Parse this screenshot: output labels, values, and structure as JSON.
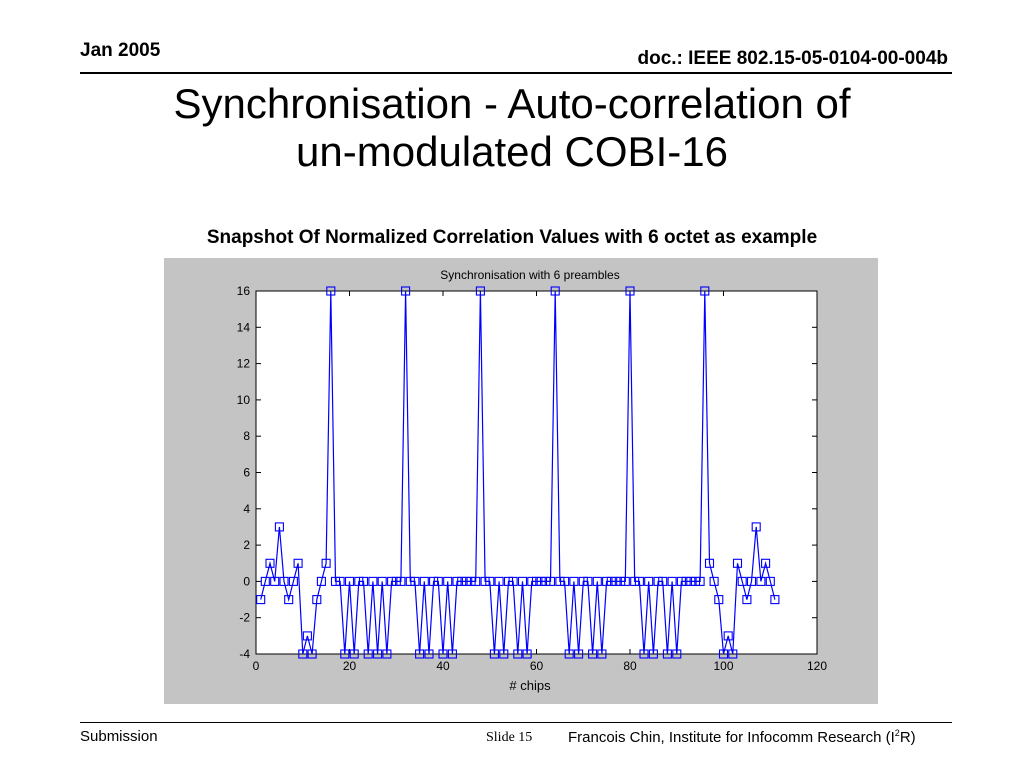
{
  "header": {
    "date": "Jan 2005",
    "doc_id": "doc.: IEEE 802.15-05-0104-00-004b"
  },
  "slide": {
    "title_line1": "Synchronisation - Auto-correlation of",
    "title_line2": "un-modulated COBI-16",
    "subtitle": "Snapshot Of Normalized Correlation Values with 6 octet as example"
  },
  "footer": {
    "left": "Submission",
    "slide_label": "Slide 15",
    "author_pre": "Francois Chin, Institute for Infocomm Research (I",
    "author_sup": "2",
    "author_post": "R)"
  },
  "chart_data": {
    "type": "line",
    "title": "Synchronisation with 6 preambles",
    "xlabel": "# chips",
    "ylabel": "",
    "xlim": [
      0,
      120
    ],
    "ylim": [
      -4,
      16
    ],
    "xticks": [
      0,
      20,
      40,
      60,
      80,
      100,
      120
    ],
    "yticks": [
      -4,
      -2,
      0,
      2,
      4,
      6,
      8,
      10,
      12,
      14,
      16
    ],
    "grid": false,
    "line_color": "#0000ff",
    "marker": "square",
    "series": [
      {
        "x": [
          1,
          2,
          3,
          4,
          5,
          6,
          7,
          8,
          9,
          10,
          11,
          12,
          13,
          14,
          15,
          16,
          17,
          18,
          19,
          20,
          21,
          22,
          23,
          24,
          25,
          26,
          27,
          28,
          29,
          30,
          31,
          32,
          33,
          34,
          35,
          36,
          37,
          38,
          39,
          40,
          41,
          42,
          43,
          44,
          45,
          46,
          47,
          48,
          49,
          50,
          51,
          52,
          53,
          54,
          55,
          56,
          57,
          58,
          59,
          60,
          61,
          62,
          63,
          64,
          65,
          66,
          67,
          68,
          69,
          70,
          71,
          72,
          73,
          74,
          75,
          76,
          77,
          78,
          79,
          80,
          81,
          82,
          83,
          84,
          85,
          86,
          87,
          88,
          89,
          90,
          91,
          92,
          93,
          94,
          95,
          96,
          97,
          98,
          99,
          100,
          101,
          102,
          103,
          104,
          105,
          106,
          107,
          108,
          109,
          110,
          111
        ],
        "y": [
          -1,
          0,
          1,
          0,
          3,
          0,
          -1,
          0,
          1,
          -4,
          -3,
          -4,
          -1,
          0,
          1,
          16,
          0,
          0,
          -4,
          0,
          -4,
          0,
          0,
          -4,
          0,
          -4,
          0,
          -4,
          0,
          0,
          0,
          16,
          0,
          0,
          -4,
          0,
          -4,
          0,
          0,
          -4,
          0,
          -4,
          0,
          0,
          0,
          0,
          0,
          16,
          0,
          0,
          -4,
          0,
          -4,
          0,
          0,
          -4,
          0,
          -4,
          0,
          0,
          0,
          0,
          0,
          16,
          0,
          0,
          -4,
          0,
          -4,
          0,
          0,
          -4,
          0,
          -4,
          0,
          0,
          0,
          0,
          0,
          16,
          0,
          0,
          -4,
          0,
          -4,
          0,
          0,
          -4,
          0,
          -4,
          0,
          0,
          0,
          0,
          0,
          16,
          1,
          0,
          -1,
          -4,
          -3,
          -4,
          1,
          0,
          -1,
          0,
          3,
          0,
          1,
          0,
          -1
        ]
      }
    ]
  }
}
